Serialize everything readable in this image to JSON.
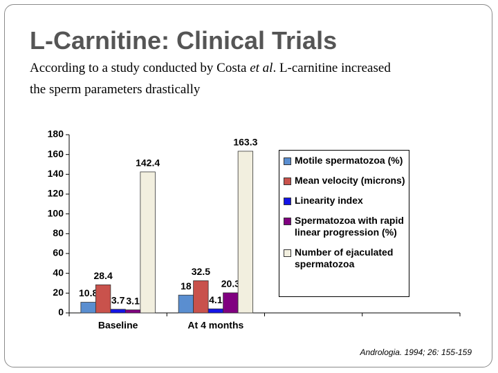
{
  "header": {
    "title": "L-Carnitine: Clinical Trials",
    "subtitle": [
      "According to a study conducted by Costa ",
      "et al",
      ". L-carnitine increased the sperm parameters drastically"
    ]
  },
  "citation": "Andrologia. 1994; 26: 155-159",
  "chart_data": {
    "type": "bar",
    "categories": [
      "Baseline",
      "At 4 months",
      null,
      null
    ],
    "series": [
      {
        "name": "Motile spermatozoa (%)",
        "color": "#5a8ed0",
        "values": [
          10.8,
          18,
          null,
          null
        ]
      },
      {
        "name": "Mean velocity (microns)",
        "color": "#c9524c",
        "values": [
          28.4,
          32.5,
          null,
          null
        ]
      },
      {
        "name": "Linearity index",
        "color": "#1414e6",
        "values": [
          3.7,
          4.1,
          null,
          null
        ]
      },
      {
        "name": "Spermatozoa with rapid linear progression (%)",
        "color": "#800080",
        "values": [
          3.1,
          20.3,
          null,
          null
        ]
      },
      {
        "name": "Number of ejaculated spermatozoa",
        "color": "#f2efdf",
        "values": [
          142.4,
          163.3,
          null,
          null
        ]
      }
    ],
    "ylim": [
      0,
      180
    ],
    "yticks": [
      0,
      20,
      40,
      60,
      80,
      100,
      120,
      140,
      160,
      180
    ],
    "grid": false
  }
}
